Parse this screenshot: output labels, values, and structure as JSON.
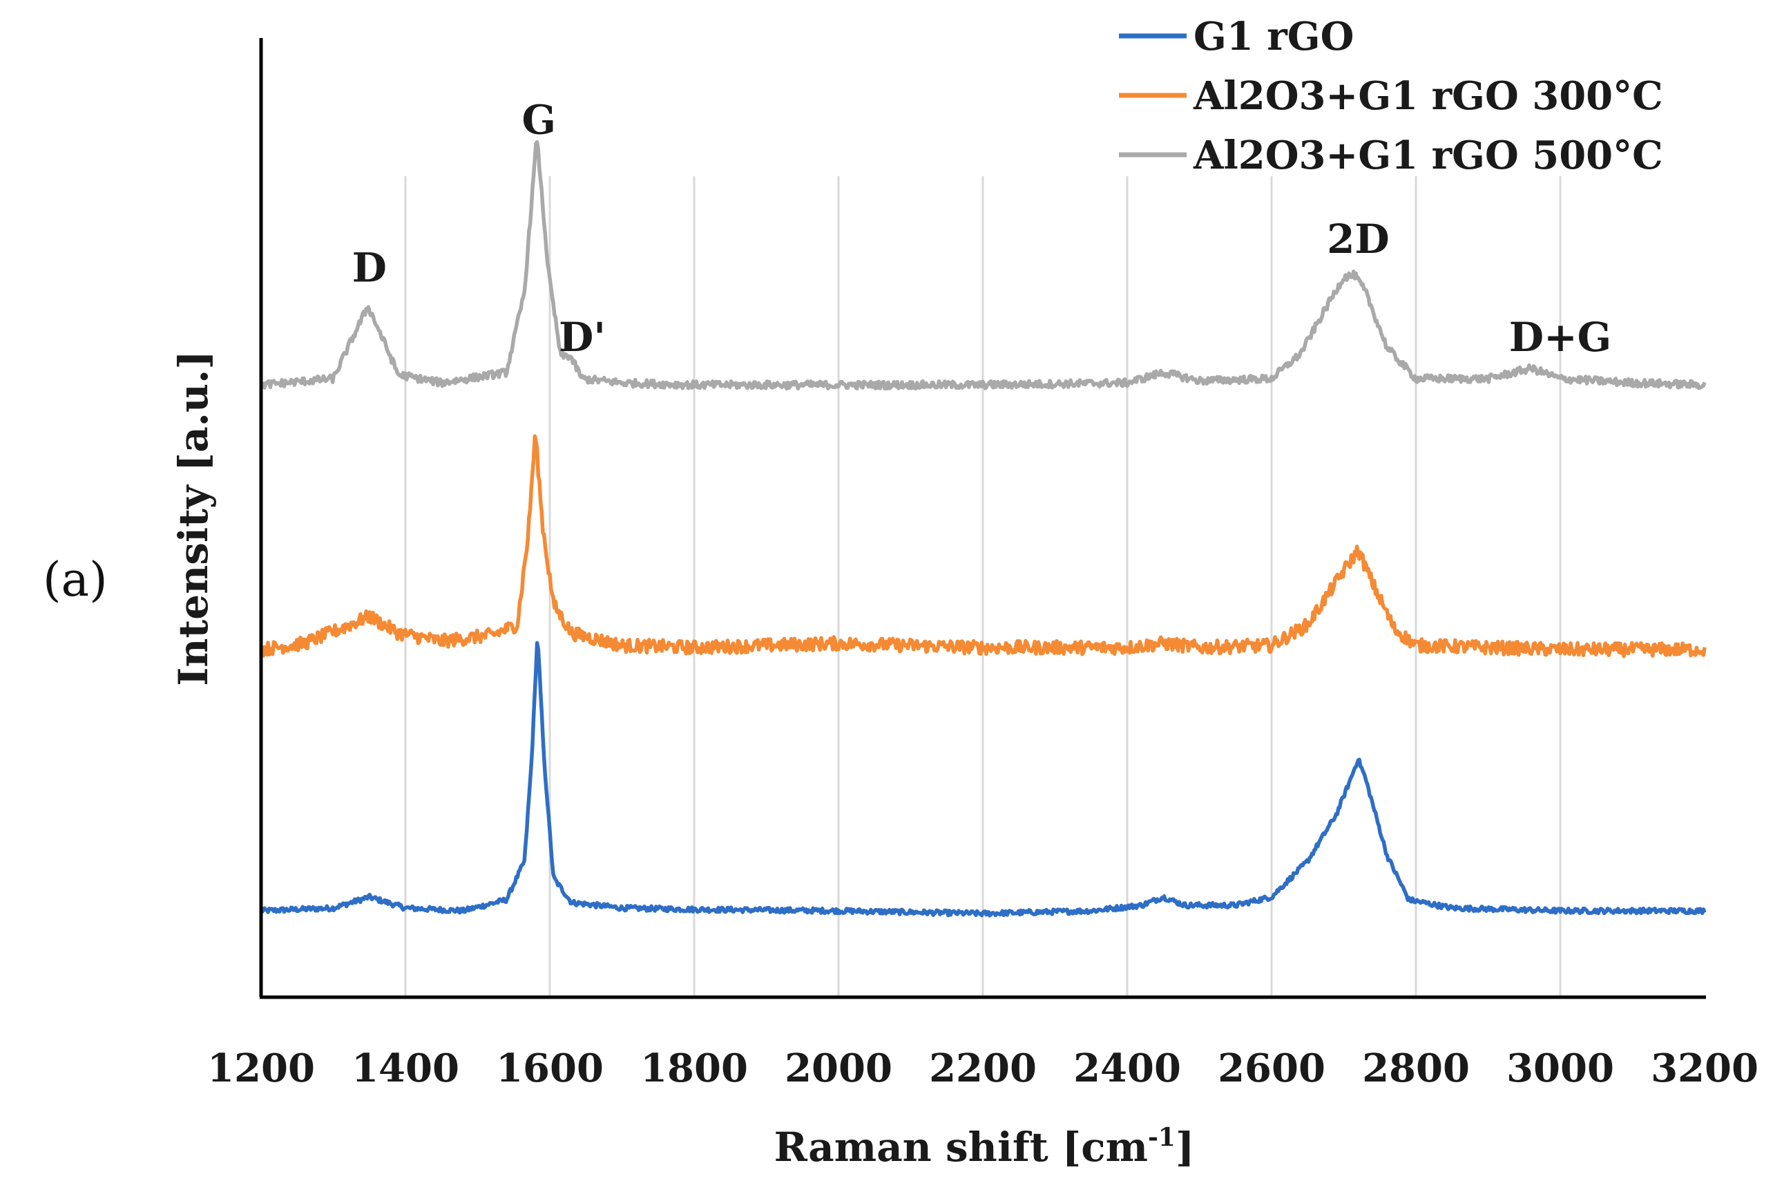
{
  "panel_label": "(a)",
  "chart_data": {
    "type": "line",
    "title": "",
    "xlabel": "Raman shift [cm",
    "xlabel_superscript": "-1",
    "xlabel_suffix": "]",
    "ylabel": "Intensity [a.u.]",
    "xlim": [
      1200,
      3200
    ],
    "xticks": [
      1200,
      1400,
      1600,
      1800,
      2000,
      2200,
      2400,
      2600,
      2800,
      3000,
      3200
    ],
    "xgrid": true,
    "ygrid": false,
    "legend_position": "top-right",
    "series": [
      {
        "name": "G1 rGO",
        "color": "#2E6EC6",
        "noise": 0.9,
        "points": [
          [
            1200,
            0
          ],
          [
            1300,
            1
          ],
          [
            1350,
            5
          ],
          [
            1400,
            1
          ],
          [
            1480,
            0
          ],
          [
            1540,
            4
          ],
          [
            1565,
            18
          ],
          [
            1575,
            55
          ],
          [
            1583,
            100
          ],
          [
            1592,
            55
          ],
          [
            1605,
            12
          ],
          [
            1630,
            3
          ],
          [
            1700,
            1
          ],
          [
            1800,
            0.5
          ],
          [
            2000,
            0
          ],
          [
            2200,
            -1
          ],
          [
            2350,
            0
          ],
          [
            2420,
            2
          ],
          [
            2450,
            5
          ],
          [
            2480,
            2
          ],
          [
            2550,
            2
          ],
          [
            2600,
            5
          ],
          [
            2650,
            18
          ],
          [
            2690,
            35
          ],
          [
            2710,
            48
          ],
          [
            2720,
            55
          ],
          [
            2730,
            48
          ],
          [
            2760,
            20
          ],
          [
            2790,
            4
          ],
          [
            2850,
            1
          ],
          [
            3000,
            0
          ],
          [
            3200,
            0
          ]
        ]
      },
      {
        "name": "Al2O3+G1 rGO 300°C",
        "color": "#F58A34",
        "noise": 3.2,
        "points": [
          [
            1200,
            0
          ],
          [
            1260,
            3
          ],
          [
            1310,
            10
          ],
          [
            1350,
            16
          ],
          [
            1390,
            8
          ],
          [
            1450,
            4
          ],
          [
            1520,
            7
          ],
          [
            1555,
            12
          ],
          [
            1570,
            55
          ],
          [
            1580,
            105
          ],
          [
            1590,
            60
          ],
          [
            1605,
            22
          ],
          [
            1630,
            8
          ],
          [
            1700,
            2
          ],
          [
            1800,
            1
          ],
          [
            2000,
            3
          ],
          [
            2200,
            1
          ],
          [
            2400,
            1
          ],
          [
            2450,
            3
          ],
          [
            2500,
            1
          ],
          [
            2600,
            2
          ],
          [
            2650,
            12
          ],
          [
            2700,
            38
          ],
          [
            2720,
            48
          ],
          [
            2740,
            32
          ],
          [
            2770,
            10
          ],
          [
            2800,
            2
          ],
          [
            3000,
            0
          ],
          [
            3200,
            0
          ]
        ]
      },
      {
        "name": "Al2O3+G1 rGO 500°C",
        "color": "#A9A9A9",
        "noise": 1.8,
        "points": [
          [
            1200,
            0
          ],
          [
            1300,
            3
          ],
          [
            1330,
            25
          ],
          [
            1348,
            38
          ],
          [
            1365,
            25
          ],
          [
            1390,
            5
          ],
          [
            1450,
            1
          ],
          [
            1540,
            6
          ],
          [
            1565,
            45
          ],
          [
            1582,
            120
          ],
          [
            1598,
            55
          ],
          [
            1615,
            14
          ],
          [
            1628,
            14
          ],
          [
            1645,
            3
          ],
          [
            1700,
            1
          ],
          [
            1800,
            0
          ],
          [
            2000,
            0
          ],
          [
            2200,
            0
          ],
          [
            2400,
            1
          ],
          [
            2450,
            6
          ],
          [
            2500,
            2
          ],
          [
            2600,
            3
          ],
          [
            2640,
            15
          ],
          [
            2680,
            40
          ],
          [
            2700,
            52
          ],
          [
            2715,
            53
          ],
          [
            2730,
            45
          ],
          [
            2760,
            18
          ],
          [
            2800,
            3
          ],
          [
            2900,
            3
          ],
          [
            2960,
            8
          ],
          [
            3000,
            3
          ],
          [
            3100,
            1
          ],
          [
            3200,
            0
          ]
        ]
      }
    ],
    "peak_labels": [
      {
        "text": "D",
        "x": 1350,
        "series": 2
      },
      {
        "text": "G",
        "x": 1585,
        "series": 2
      },
      {
        "text": "D'",
        "x": 1645,
        "series": 2
      },
      {
        "text": "2D",
        "x": 2720,
        "series": 2
      },
      {
        "text": "D+G",
        "x": 3000,
        "series": 2
      }
    ]
  }
}
